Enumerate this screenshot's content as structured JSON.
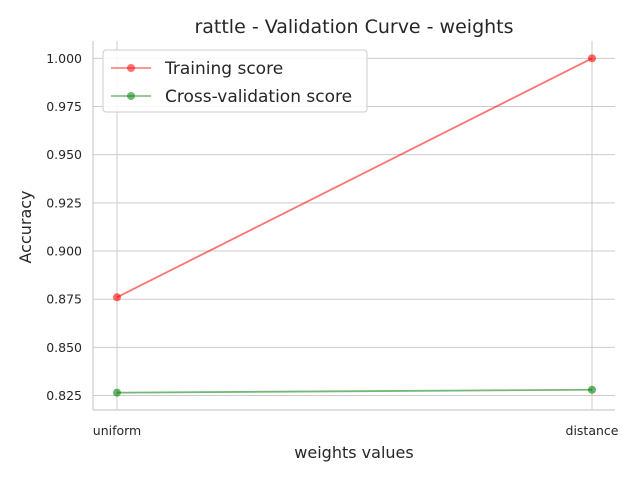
{
  "chart_data": {
    "type": "line",
    "title": "rattle - Validation Curve - weights",
    "xlabel": "weights values",
    "ylabel": "Accuracy",
    "categories": [
      "uniform",
      "distance"
    ],
    "ylim": [
      0.8175,
      1.009
    ],
    "yticks": [
      "0.825",
      "0.850",
      "0.875",
      "0.900",
      "0.925",
      "0.950",
      "0.975",
      "1.000"
    ],
    "grid": true,
    "legend": "upper-left",
    "series": [
      {
        "name": "Training score",
        "values": [
          0.876,
          1.0
        ],
        "color": "#ff0000"
      },
      {
        "name": "Cross-validation score",
        "values": [
          0.8265,
          0.828
        ],
        "color": "#008000"
      }
    ]
  }
}
